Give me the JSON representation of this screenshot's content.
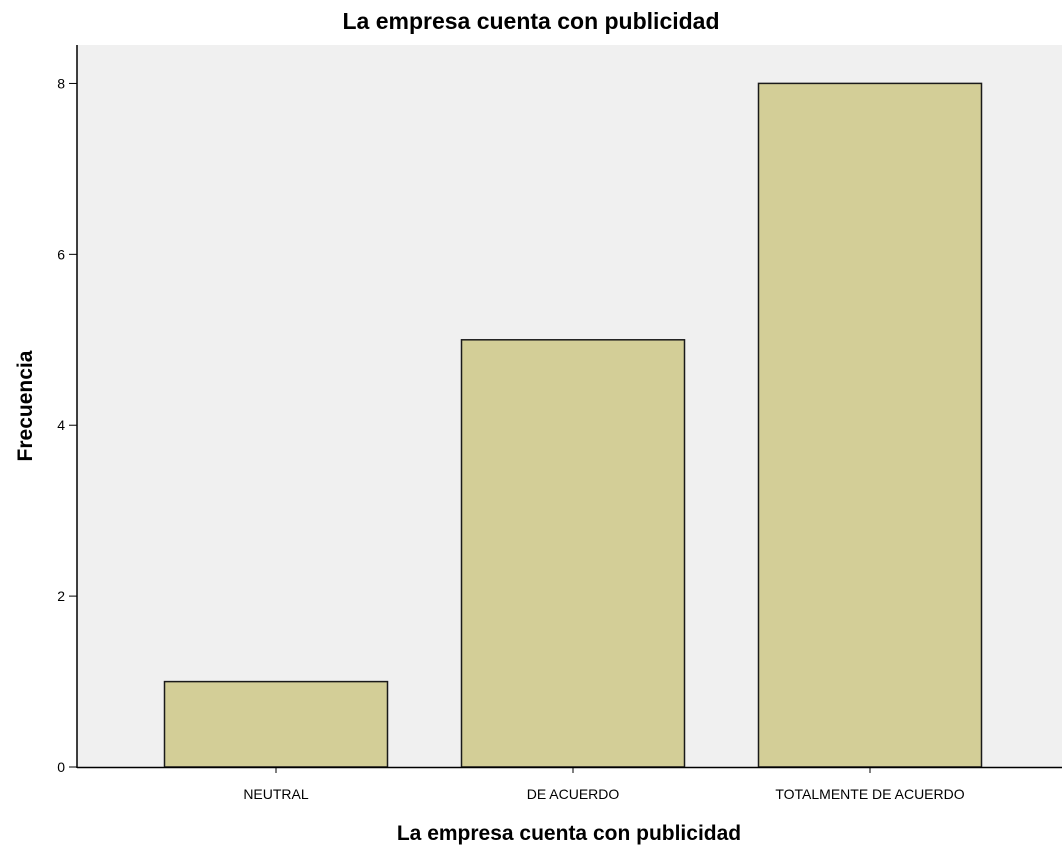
{
  "chart_data": {
    "type": "bar",
    "title": "La empresa cuenta con publicidad",
    "xlabel": "La empresa cuenta con publicidad",
    "ylabel": "Frecuencia",
    "categories": [
      "NEUTRAL",
      "DE ACUERDO",
      "TOTALMENTE DE ACUERDO"
    ],
    "values": [
      1,
      5,
      8
    ],
    "ylim": [
      0,
      8.45
    ],
    "yticks": [
      0,
      2,
      4,
      6,
      8
    ],
    "grid": false,
    "legend": "none",
    "colors": {
      "bar_fill": "#d3ce97",
      "bar_stroke": "#1a1a1a",
      "plot_background": "#f0f0f0",
      "axis": "#000000"
    }
  }
}
